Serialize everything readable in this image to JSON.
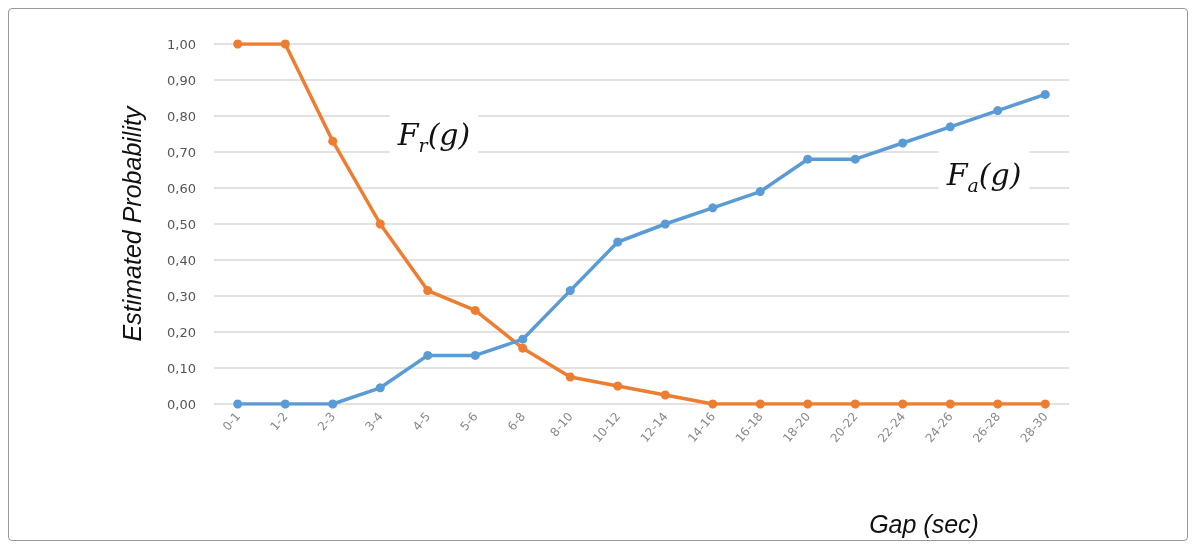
{
  "chart_data": {
    "type": "line",
    "xlabel": "Gap (sec)",
    "ylabel": "Estimated Probability",
    "categories": [
      "0-1",
      "1-2",
      "2-3",
      "3-4",
      "4-5",
      "5-6",
      "6-8",
      "8-10",
      "10-12",
      "12-14",
      "14-16",
      "16-18",
      "18-20",
      "20-22",
      "22-24",
      "24-26",
      "26-28",
      "28-30"
    ],
    "series": [
      {
        "color": "#ed7d31",
        "values": [
          1,
          1,
          0.73,
          0.5,
          0.315,
          0.26,
          0.155,
          0.075,
          0.05,
          0.025,
          0,
          0,
          0,
          0,
          0,
          0,
          0,
          0
        ]
      },
      {
        "color": "#5b9bd5",
        "values": [
          0,
          0,
          0,
          0.045,
          0.135,
          0.135,
          0.18,
          0.315,
          0.45,
          0.5,
          0.545,
          0.59,
          0.68,
          0.68,
          0.725,
          0.77,
          0.815,
          0.86
        ]
      }
    ],
    "annotations": [
      "F$_{r}$(g)",
      "F$_{a}$(g)"
    ],
    "ylim": [
      0,
      1
    ],
    "yticks": [
      {
        "value": 0,
        "label": "0,00"
      },
      {
        "value": 0.1,
        "label": "0,10"
      },
      {
        "value": 0.2,
        "label": "0,20"
      },
      {
        "value": 0.3,
        "label": "0,30"
      },
      {
        "value": 0.4,
        "label": "0,40"
      },
      {
        "value": 0.5,
        "label": "0,50"
      },
      {
        "value": 0.6,
        "label": "0,60"
      },
      {
        "value": 0.7,
        "label": "0,70"
      },
      {
        "value": 0.8,
        "label": "0,80"
      },
      {
        "value": 0.9,
        "label": "0,90"
      },
      {
        "value": 1,
        "label": "1,00"
      }
    ],
    "grid": "y",
    "marker": "circle",
    "line_style": "solid"
  }
}
